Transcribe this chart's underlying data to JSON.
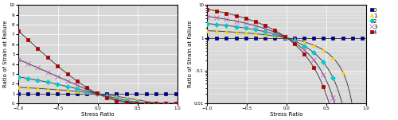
{
  "xlabel": "Stress Ratio",
  "ylabel": "Ratio of Strain at Failure",
  "xlim": [
    -1,
    1
  ],
  "ylim_left": [
    0,
    10
  ],
  "ylim_right": [
    0.01,
    10
  ],
  "alpha_values": [
    0,
    1,
    2,
    3,
    4
  ],
  "colors": [
    "#00008B",
    "#FFD700",
    "#00CCCC",
    "#CC44CC",
    "#AA0000"
  ],
  "markers": [
    "s",
    "^",
    "D",
    "x",
    "s"
  ],
  "markersizes": [
    3,
    3,
    3,
    4,
    3
  ],
  "background": "#d8d8d8",
  "legend_labels": [
    "0",
    "1",
    "2",
    "3",
    "4"
  ],
  "n_marker_points": 17
}
